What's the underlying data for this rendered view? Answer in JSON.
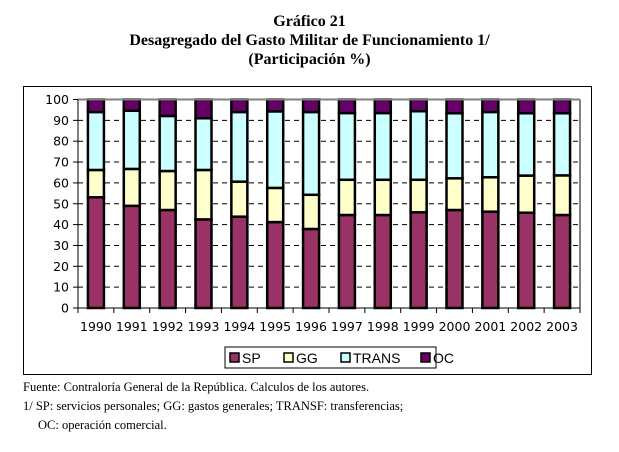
{
  "title": {
    "line1": "Gráfico 21",
    "line2": "Desagregado del Gasto Militar de Funcionamiento  1/",
    "line3": "(Participación %)"
  },
  "chart_data": {
    "type": "bar",
    "stacked": true,
    "title": "Desagregado del Gasto Militar de Funcionamiento 1/",
    "subtitle": "(Participación %)",
    "xlabel": "",
    "ylabel": "",
    "ylim": [
      0,
      100
    ],
    "yticks": [
      "0",
      "10",
      "20",
      "30",
      "40",
      "50",
      "60",
      "70",
      "80",
      "90",
      "100"
    ],
    "grid": "horizontal dashed",
    "legend_position": "bottom",
    "categories": [
      "1990",
      "1991",
      "1992",
      "1993",
      "1994",
      "1995",
      "1996",
      "1997",
      "1998",
      "1999",
      "2000",
      "2001",
      "2002",
      "2003"
    ],
    "series": [
      {
        "name": "SP",
        "color": "#993366",
        "values": [
          53.1,
          49.0,
          47.0,
          42.5,
          43.8,
          41.2,
          37.9,
          44.6,
          44.6,
          45.9,
          47.0,
          46.2,
          45.7,
          44.6
        ]
      },
      {
        "name": "GG",
        "color": "#FFFFCC",
        "values": [
          13.1,
          17.7,
          18.7,
          23.7,
          16.8,
          16.4,
          16.4,
          16.9,
          16.9,
          15.6,
          15.2,
          16.5,
          17.8,
          19.0
        ]
      },
      {
        "name": "TRANS",
        "color": "#CCFFFF",
        "values": [
          27.8,
          27.9,
          26.4,
          24.8,
          33.4,
          36.7,
          39.7,
          32.0,
          32.0,
          32.9,
          31.2,
          31.3,
          29.9,
          29.8
        ]
      },
      {
        "name": "OC",
        "color": "#660066",
        "values": [
          6.0,
          5.4,
          7.9,
          9.0,
          6.0,
          5.7,
          6.0,
          6.5,
          6.5,
          5.6,
          6.6,
          6.0,
          6.6,
          6.6
        ]
      }
    ]
  },
  "notes": {
    "source": "Fuente: Contraloría General de la República. Calculos de los autores.",
    "note1": "1/ SP: servicios personales; GG: gastos generales; TRANSF: transferencias;",
    "note2": "OC: operación comercial."
  }
}
